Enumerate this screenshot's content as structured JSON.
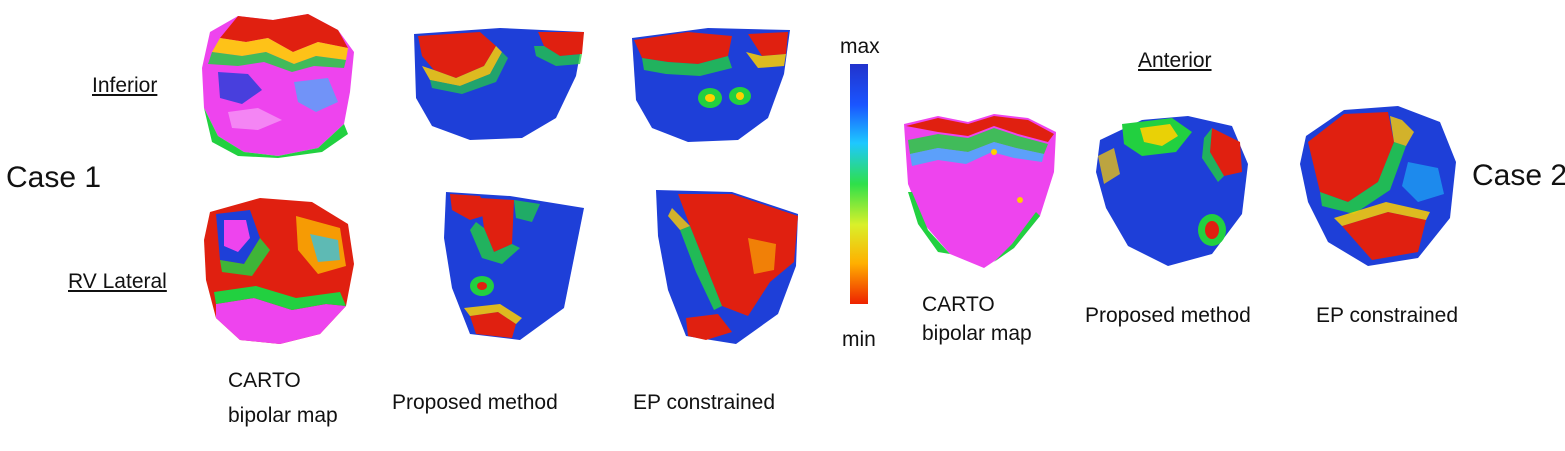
{
  "case1": {
    "label": "Case 1",
    "views": [
      {
        "label": "Inferior"
      },
      {
        "label": "RV Lateral"
      }
    ],
    "captions": {
      "carto_line1": "CARTO",
      "carto_line2": "bipolar map",
      "proposed": "Proposed method",
      "ep": "EP constrained"
    }
  },
  "case2": {
    "label": "Case 2",
    "view": {
      "label": "Anterior"
    },
    "captions": {
      "carto_line1": "CARTO",
      "carto_line2": "bipolar map",
      "proposed": "Proposed method",
      "ep": "EP constrained"
    }
  },
  "colorbar": {
    "max_label": "max",
    "min_label": "min",
    "colors": [
      "#2233cc",
      "#1a55ff",
      "#1ec8ff",
      "#2ee04a",
      "#d9f02a",
      "#ffb000",
      "#ee2200"
    ]
  },
  "colors": {
    "scar_red": "#e02010",
    "healthy_blue": "#1e3fd8",
    "border_green": "#22d040",
    "border_cyan": "#1ec8ff",
    "border_yellow": "#ffd000",
    "carto_magenta": "#ee44ee"
  }
}
